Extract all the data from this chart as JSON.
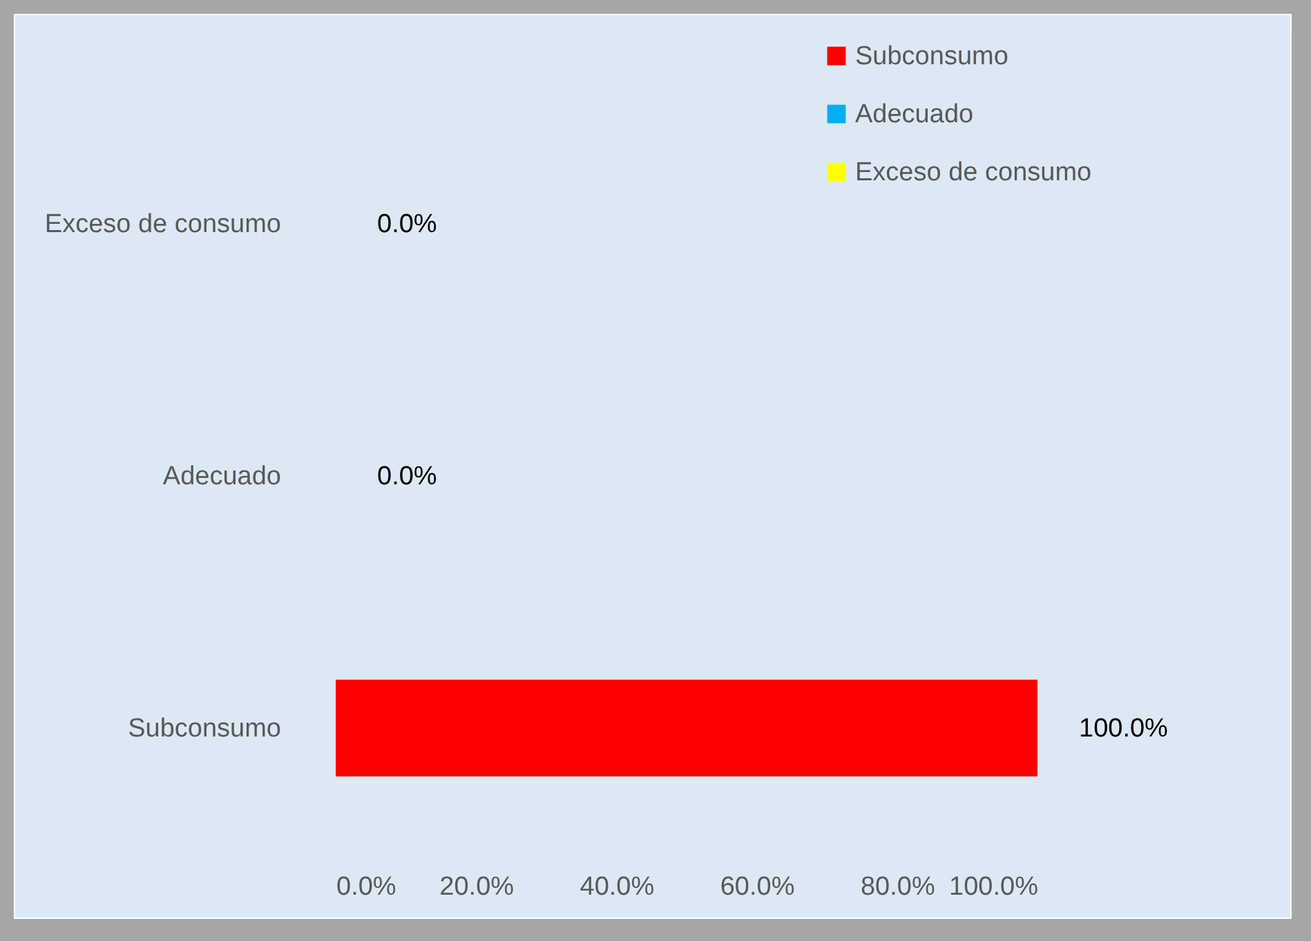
{
  "chart_data": {
    "type": "bar",
    "orientation": "horizontal",
    "categories": [
      "Exceso de consumo",
      "Adecuado",
      "Subconsumo"
    ],
    "series": [
      {
        "name": "Subconsumo",
        "color": "#ff0000",
        "values": [
          null,
          null,
          100
        ],
        "value_labels": [
          null,
          null,
          "100.0%"
        ]
      },
      {
        "name": "Adecuado",
        "color": "#00b0f0",
        "values": [
          null,
          0,
          null
        ],
        "value_labels": [
          null,
          "0.0%",
          null
        ]
      },
      {
        "name": "Exceso de consumo",
        "color": "#ffff00",
        "values": [
          0,
          null,
          null
        ],
        "value_labels": [
          "0.0%",
          null,
          null
        ]
      }
    ],
    "xlim": [
      0,
      100
    ],
    "xticks": [
      {
        "value": 0,
        "label": "0.0%"
      },
      {
        "value": 20,
        "label": "20.0%"
      },
      {
        "value": 40,
        "label": "40.0%"
      },
      {
        "value": 60,
        "label": "60.0%"
      },
      {
        "value": 80,
        "label": "80.0%"
      },
      {
        "value": 100,
        "label": "100.0%"
      }
    ],
    "grid": false,
    "legend": "top right"
  }
}
